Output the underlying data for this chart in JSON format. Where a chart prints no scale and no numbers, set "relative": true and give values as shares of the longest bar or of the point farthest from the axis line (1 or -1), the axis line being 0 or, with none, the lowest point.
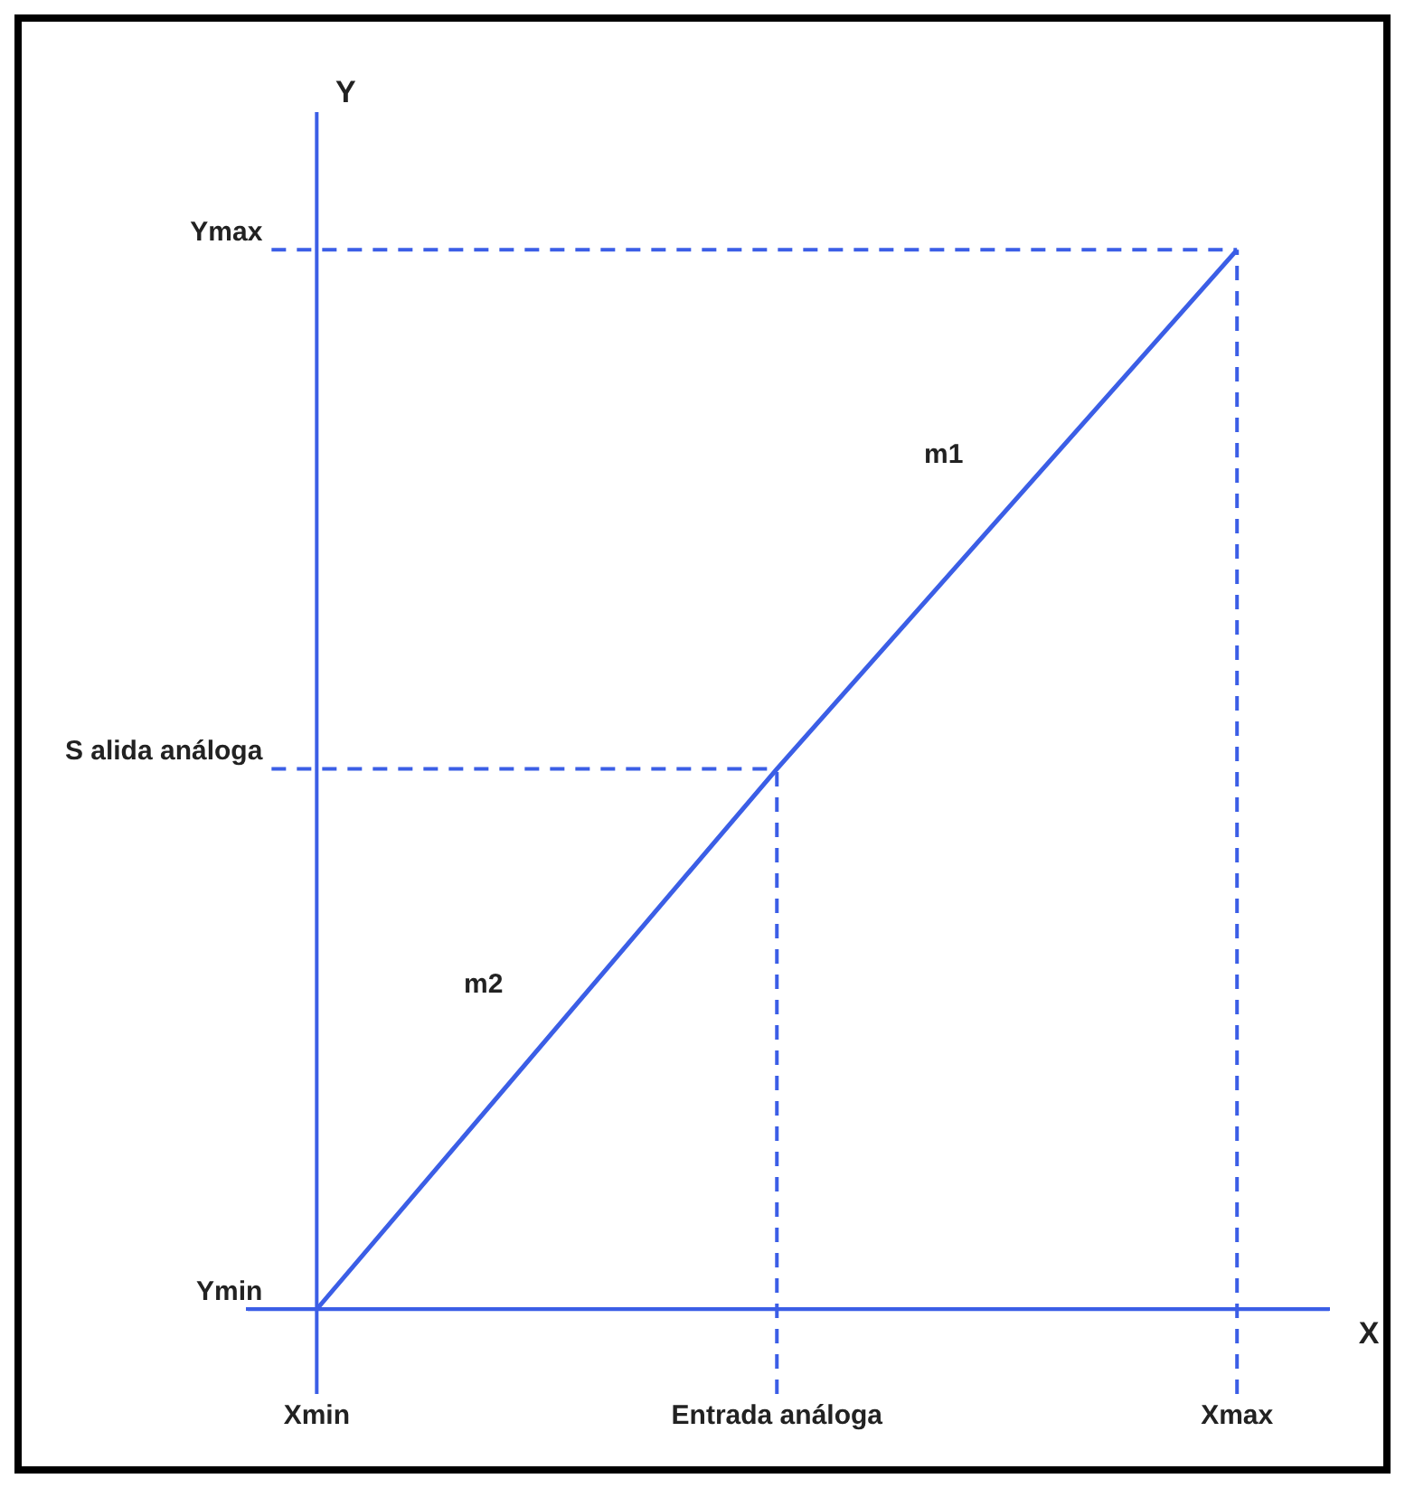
{
  "chart_data": {
    "type": "line",
    "relative": true,
    "xlabel": "X",
    "ylabel": "Y",
    "categories": [
      "Xmin",
      "Entrada análoga",
      "Xmax"
    ],
    "series": [
      {
        "color": "#3b5ee6",
        "values": [
          0,
          0.51,
          1
        ]
      }
    ],
    "ref_lines": [
      {
        "axis": "y",
        "value": 0,
        "label": "Ymin",
        "color": "#3b5ee6",
        "line_style": "solid"
      },
      {
        "axis": "y",
        "value": 0.51,
        "label": "S alida análoga",
        "color": "#3b5ee6",
        "line_style": "dashed"
      },
      {
        "axis": "y",
        "value": 1,
        "label": "Ymax",
        "color": "#3b5ee6",
        "line_style": "dashed"
      },
      {
        "axis": "x",
        "value": "Xmin",
        "color": "#3b5ee6",
        "line_style": "solid"
      },
      {
        "axis": "x",
        "value": "Entrada análoga",
        "color": "#3b5ee6",
        "line_style": "dashed"
      },
      {
        "axis": "x",
        "value": "Xmax",
        "color": "#3b5ee6",
        "line_style": "dashed"
      }
    ],
    "annotations": [
      "m1",
      "m2"
    ],
    "legend": false,
    "grid": false,
    "marker": "none",
    "line_style": "solid"
  }
}
